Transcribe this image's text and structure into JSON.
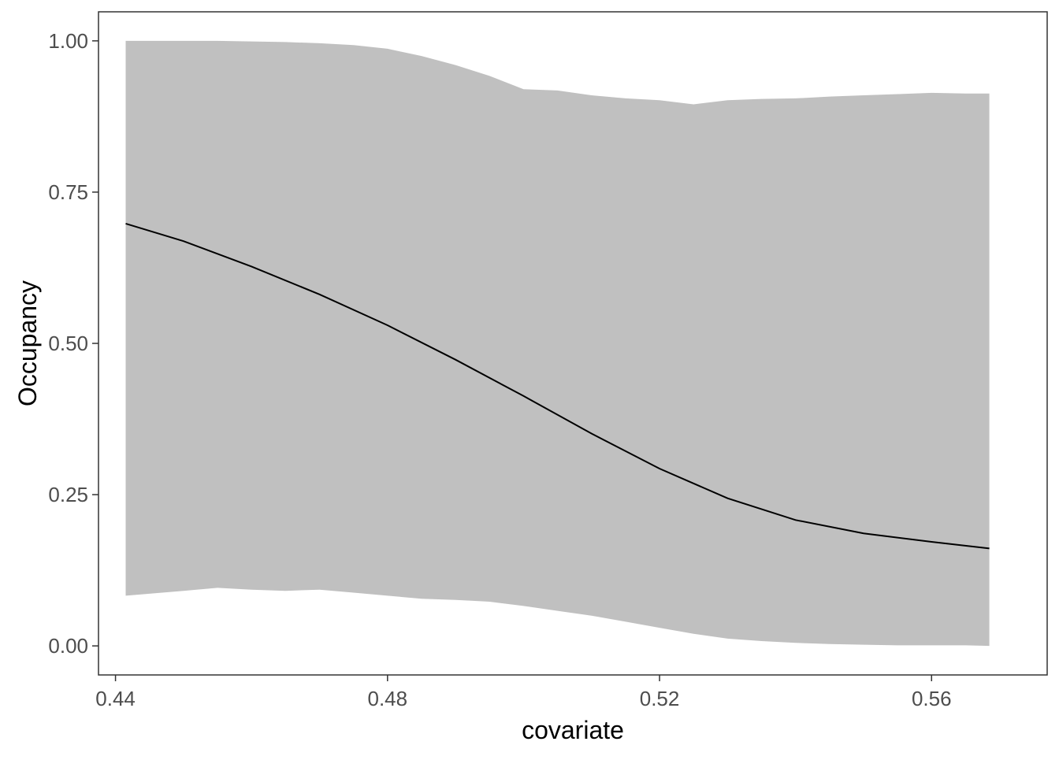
{
  "chart_data": {
    "type": "area",
    "title": "",
    "xlabel": "covariate",
    "ylabel": "Occupancy",
    "xlim": [
      0.4375,
      0.577
    ],
    "ylim": [
      -0.048,
      1.048
    ],
    "x_ticks": [
      0.44,
      0.48,
      0.52,
      0.56
    ],
    "x_tick_labels": [
      "0.44",
      "0.48",
      "0.52",
      "0.56"
    ],
    "y_ticks": [
      0.0,
      0.25,
      0.5,
      0.75,
      1.0
    ],
    "y_tick_labels": [
      "0.00",
      "0.25",
      "0.50",
      "0.75",
      "1.00"
    ],
    "grid": false,
    "legend": "none",
    "colors": {
      "ribbon": "#c0c0c0",
      "line": "#000000",
      "panel_border": "#333333",
      "tick_text": "#4d4d4d"
    },
    "series": [
      {
        "kind": "line",
        "x": [
          0.4415,
          0.45,
          0.46,
          0.47,
          0.48,
          0.49,
          0.5,
          0.51,
          0.52,
          0.53,
          0.54,
          0.55,
          0.56,
          0.5685
        ],
        "values": [
          0.698,
          0.669,
          0.627,
          0.581,
          0.53,
          0.473,
          0.413,
          0.351,
          0.293,
          0.244,
          0.208,
          0.186,
          0.172,
          0.161
        ]
      },
      {
        "kind": "ribbon",
        "x": [
          0.4415,
          0.45,
          0.455,
          0.46,
          0.465,
          0.47,
          0.475,
          0.48,
          0.485,
          0.49,
          0.495,
          0.5,
          0.505,
          0.51,
          0.515,
          0.52,
          0.525,
          0.53,
          0.535,
          0.54,
          0.545,
          0.55,
          0.555,
          0.56,
          0.565,
          0.5685
        ],
        "upper": [
          1.0,
          1.0,
          1.0,
          0.999,
          0.998,
          0.996,
          0.993,
          0.987,
          0.975,
          0.96,
          0.942,
          0.92,
          0.918,
          0.91,
          0.905,
          0.902,
          0.895,
          0.902,
          0.904,
          0.905,
          0.908,
          0.91,
          0.912,
          0.914,
          0.913,
          0.913
        ],
        "lower": [
          0.083,
          0.091,
          0.096,
          0.093,
          0.091,
          0.093,
          0.088,
          0.083,
          0.078,
          0.076,
          0.073,
          0.066,
          0.058,
          0.05,
          0.04,
          0.03,
          0.02,
          0.012,
          0.008,
          0.005,
          0.003,
          0.002,
          0.001,
          0.001,
          0.001,
          0.0
        ]
      }
    ]
  }
}
